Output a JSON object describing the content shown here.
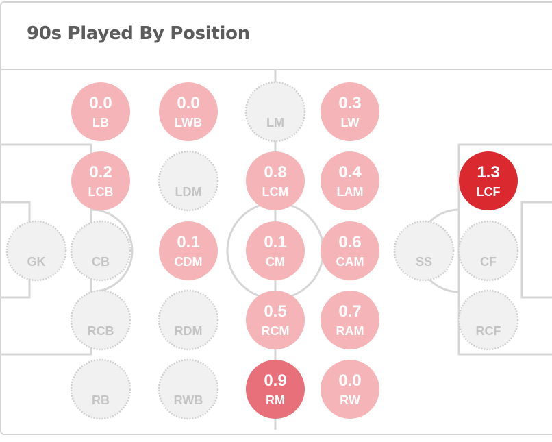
{
  "title": "90s Played By Position",
  "colors": {
    "line": "#d6d6d6",
    "empty_fill": "#f1f1f1",
    "empty_stroke": "#cfcfcf",
    "empty_text": "#c4c4c4",
    "low_fill": "#f5b4b8",
    "mid_fill": "#e8707a",
    "high_fill": "#da2a30",
    "filled_text": "#ffffff"
  },
  "chart_data": {
    "type": "heatmap",
    "title": "90s Played By Position",
    "value_range": [
      0,
      1.3
    ],
    "positions": [
      {
        "label": "LB",
        "value": 0.0,
        "value_text": "0.0"
      },
      {
        "label": "LWB",
        "value": 0.0,
        "value_text": "0.0"
      },
      {
        "label": "LM",
        "value": null,
        "value_text": ""
      },
      {
        "label": "LW",
        "value": 0.3,
        "value_text": "0.3"
      },
      {
        "label": "LCB",
        "value": 0.2,
        "value_text": "0.2"
      },
      {
        "label": "LDM",
        "value": null,
        "value_text": ""
      },
      {
        "label": "LCM",
        "value": 0.8,
        "value_text": "0.8"
      },
      {
        "label": "LAM",
        "value": 0.4,
        "value_text": "0.4"
      },
      {
        "label": "LCF",
        "value": 1.3,
        "value_text": "1.3"
      },
      {
        "label": "GK",
        "value": null,
        "value_text": ""
      },
      {
        "label": "CB",
        "value": null,
        "value_text": ""
      },
      {
        "label": "CDM",
        "value": 0.1,
        "value_text": "0.1"
      },
      {
        "label": "CM",
        "value": 0.1,
        "value_text": "0.1"
      },
      {
        "label": "CAM",
        "value": 0.6,
        "value_text": "0.6"
      },
      {
        "label": "SS",
        "value": null,
        "value_text": ""
      },
      {
        "label": "CF",
        "value": null,
        "value_text": ""
      },
      {
        "label": "RCB",
        "value": null,
        "value_text": ""
      },
      {
        "label": "RDM",
        "value": null,
        "value_text": ""
      },
      {
        "label": "RCM",
        "value": 0.5,
        "value_text": "0.5"
      },
      {
        "label": "RAM",
        "value": 0.7,
        "value_text": "0.7"
      },
      {
        "label": "RCF",
        "value": null,
        "value_text": ""
      },
      {
        "label": "RB",
        "value": null,
        "value_text": ""
      },
      {
        "label": "RWB",
        "value": null,
        "value_text": ""
      },
      {
        "label": "RM",
        "value": 0.9,
        "value_text": "0.9"
      },
      {
        "label": "RW",
        "value": 0.0,
        "value_text": "0.0"
      }
    ]
  }
}
